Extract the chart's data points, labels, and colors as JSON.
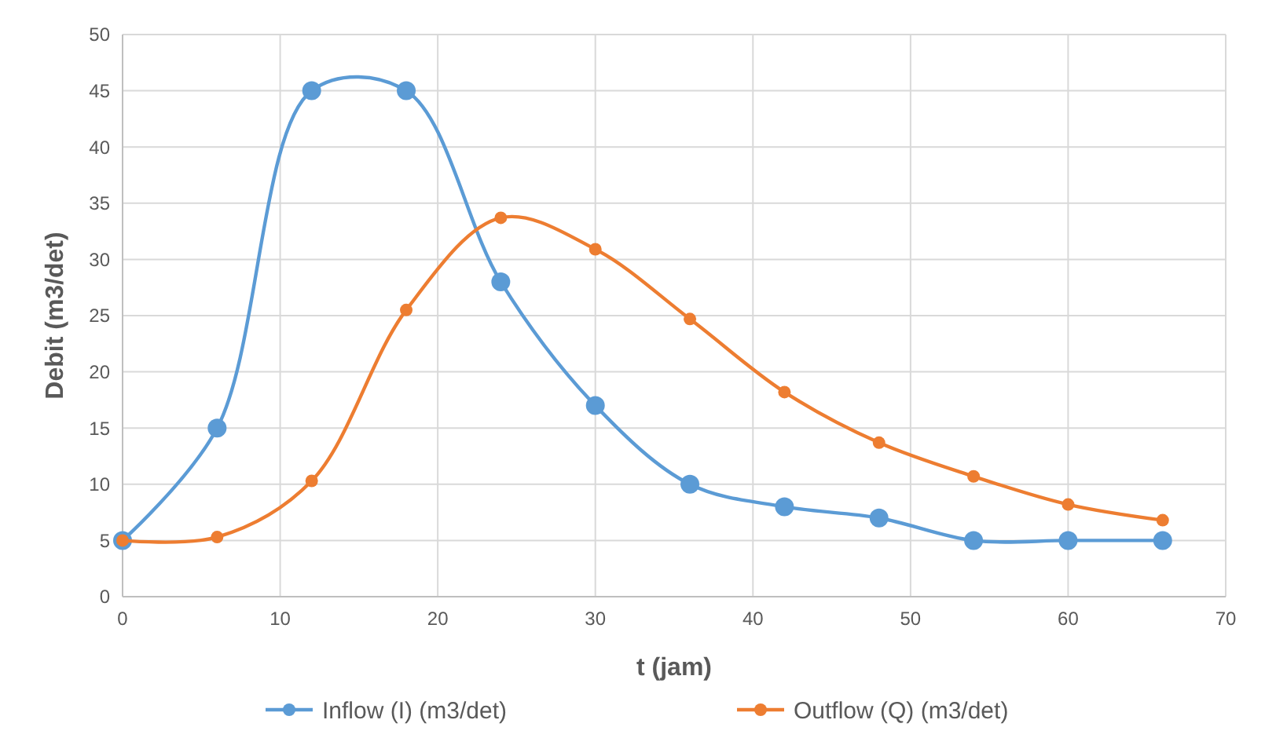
{
  "chart_data": {
    "type": "line",
    "xlabel": "t (jam)",
    "ylabel": "Debit (m3/det)",
    "x": [
      0,
      6,
      12,
      18,
      24,
      30,
      36,
      42,
      48,
      54,
      60,
      66
    ],
    "xlim": [
      0,
      70
    ],
    "xticks": [
      0,
      10,
      20,
      30,
      40,
      50,
      60,
      70
    ],
    "ylim": [
      0,
      50
    ],
    "yticks": [
      0,
      5,
      10,
      15,
      20,
      25,
      30,
      35,
      40,
      45,
      50
    ],
    "grid": true,
    "legend": "bottom",
    "marker": "circle",
    "line_style": "solid",
    "series": [
      {
        "name": "Inflow (I) (m3/det)",
        "color": "#5b9bd5",
        "values": [
          5,
          15,
          45,
          45,
          28,
          17,
          10,
          8,
          7,
          5,
          5,
          5
        ]
      },
      {
        "name": "Outflow (Q) (m3/det)",
        "color": "#ed7d31",
        "values": [
          5,
          5.3,
          10.3,
          25.5,
          33.7,
          30.9,
          24.7,
          18.2,
          13.7,
          10.7,
          8.2,
          6.8
        ]
      }
    ]
  }
}
